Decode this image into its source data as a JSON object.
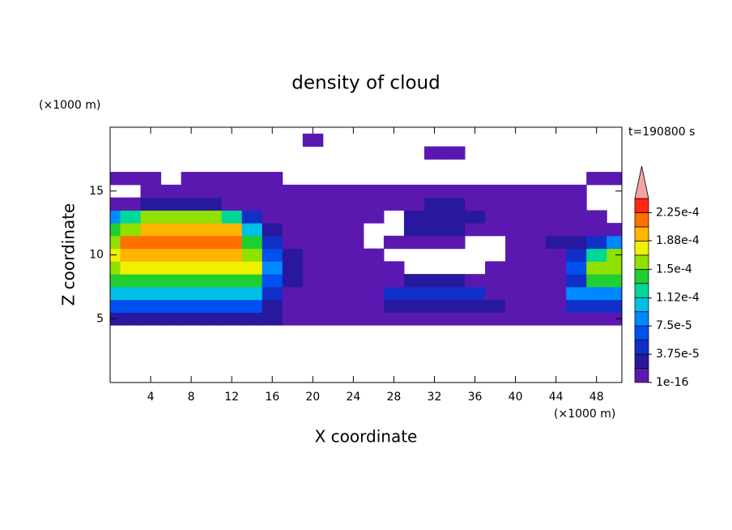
{
  "chart_data": {
    "type": "contour",
    "title": "density of cloud",
    "annotation": "t=190800 s",
    "xlabel": "X coordinate",
    "ylabel": "Z coordinate",
    "xunit": "(×1000 m)",
    "yunit": "(×1000 m)",
    "xlim": [
      0,
      50.5
    ],
    "ylim": [
      0,
      20
    ],
    "xticks": [
      4,
      8,
      12,
      16,
      20,
      24,
      28,
      32,
      36,
      40,
      44,
      48
    ],
    "yticks": [
      5,
      10,
      15
    ],
    "x": [
      0,
      2,
      4,
      6,
      8,
      10,
      12,
      14,
      16,
      18,
      20,
      22,
      24,
      26,
      28,
      30,
      32,
      34,
      36,
      38,
      40,
      42,
      44,
      46,
      48,
      50
    ],
    "y": [
      0,
      1,
      2,
      3,
      4,
      5,
      6,
      7,
      8,
      9,
      10,
      11,
      12,
      13,
      14,
      15,
      16,
      17,
      18,
      19,
      20
    ],
    "values": [
      [
        null,
        null,
        null,
        null,
        null,
        null,
        null,
        null,
        null,
        null,
        null,
        null,
        null,
        null,
        null,
        null,
        null,
        null,
        null,
        null,
        null,
        null,
        null,
        null,
        null,
        null
      ],
      [
        null,
        null,
        null,
        null,
        null,
        null,
        null,
        null,
        null,
        null,
        null,
        null,
        null,
        null,
        null,
        null,
        null,
        null,
        null,
        null,
        null,
        null,
        null,
        null,
        null,
        null
      ],
      [
        null,
        null,
        null,
        null,
        null,
        null,
        null,
        null,
        null,
        null,
        null,
        null,
        null,
        null,
        null,
        null,
        null,
        null,
        null,
        null,
        null,
        null,
        null,
        null,
        null,
        null
      ],
      [
        null,
        null,
        null,
        null,
        null,
        null,
        null,
        null,
        null,
        null,
        null,
        null,
        null,
        null,
        null,
        null,
        null,
        null,
        null,
        null,
        null,
        null,
        null,
        null,
        null,
        null
      ],
      [
        null,
        null,
        null,
        null,
        null,
        null,
        null,
        null,
        null,
        null,
        null,
        null,
        null,
        null,
        null,
        null,
        null,
        null,
        null,
        null,
        null,
        null,
        null,
        null,
        null,
        null
      ],
      [
        3e-05,
        3e-05,
        3e-05,
        3e-05,
        3e-05,
        3e-05,
        3e-05,
        3e-05,
        3e-05,
        5e-06,
        5e-06,
        5e-06,
        5e-06,
        5e-06,
        5e-06,
        5e-06,
        5e-06,
        5e-06,
        5e-06,
        5e-06,
        5e-06,
        5e-06,
        5e-06,
        5e-06,
        5e-06,
        5e-06
      ],
      [
        6e-05,
        6e-05,
        6e-05,
        6e-05,
        6e-05,
        6e-05,
        6e-05,
        6e-05,
        3e-05,
        5e-06,
        5e-06,
        5e-06,
        5e-06,
        5e-06,
        3e-05,
        3e-05,
        3e-05,
        3e-05,
        3e-05,
        3e-05,
        5e-06,
        5e-06,
        5e-06,
        4e-05,
        4e-05,
        4e-05
      ],
      [
        0.00011,
        0.00011,
        0.00011,
        0.00011,
        0.00011,
        0.00011,
        0.00011,
        0.00011,
        5e-05,
        5e-06,
        5e-06,
        5e-06,
        5e-06,
        5e-06,
        4e-05,
        4e-05,
        4e-05,
        4e-05,
        4e-05,
        5e-06,
        5e-06,
        5e-06,
        5e-06,
        8e-05,
        8e-05,
        8e-05
      ],
      [
        0.00014,
        0.00014,
        0.00014,
        0.00014,
        0.00014,
        0.00014,
        0.00014,
        0.00014,
        6e-05,
        3e-05,
        5e-06,
        5e-06,
        5e-06,
        5e-06,
        5e-06,
        2.5e-05,
        2.5e-05,
        2.5e-05,
        5e-06,
        5e-06,
        5e-06,
        5e-06,
        5e-06,
        5e-05,
        0.00014,
        0.00014
      ],
      [
        0.00016,
        0.00018,
        0.00018,
        0.00018,
        0.00018,
        0.00018,
        0.00018,
        0.00018,
        8e-05,
        3e-05,
        5e-06,
        5e-06,
        5e-06,
        5e-06,
        5e-06,
        null,
        null,
        null,
        null,
        5e-06,
        5e-06,
        5e-06,
        5e-06,
        6e-05,
        0.00016,
        0.00016
      ],
      [
        0.00017,
        0.0002,
        0.0002,
        0.0002,
        0.0002,
        0.0002,
        0.0002,
        0.00016,
        6e-05,
        2.5e-05,
        5e-06,
        5e-06,
        5e-06,
        5e-06,
        null,
        null,
        null,
        null,
        null,
        null,
        5e-06,
        5e-06,
        5e-06,
        4e-05,
        0.00012,
        0.00015
      ],
      [
        0.00016,
        0.00021,
        0.00021,
        0.00021,
        0.00021,
        0.00021,
        0.00021,
        0.00014,
        4e-05,
        5e-06,
        5e-06,
        5e-06,
        5e-06,
        null,
        5e-06,
        5e-06,
        5e-06,
        5e-06,
        null,
        null,
        5e-06,
        5e-06,
        3e-05,
        3e-05,
        4e-05,
        8e-05
      ],
      [
        0.00014,
        0.00016,
        0.00019,
        0.00019,
        0.00019,
        0.00019,
        0.00019,
        0.00011,
        3e-05,
        5e-06,
        5e-06,
        5e-06,
        5e-06,
        null,
        null,
        3e-05,
        3e-05,
        3e-05,
        5e-06,
        5e-06,
        5e-06,
        5e-06,
        5e-06,
        5e-06,
        5e-06,
        5e-06
      ],
      [
        8e-05,
        0.00012,
        0.00015,
        0.00015,
        0.00015,
        0.00015,
        0.00012,
        5e-05,
        5e-06,
        5e-06,
        5e-06,
        5e-06,
        5e-06,
        5e-06,
        null,
        3e-05,
        3e-05,
        3e-05,
        3e-05,
        5e-06,
        5e-06,
        5e-06,
        5e-06,
        5e-06,
        5e-06,
        null
      ],
      [
        5e-06,
        5e-06,
        3e-05,
        3e-05,
        3e-05,
        3e-05,
        5e-06,
        5e-06,
        5e-06,
        5e-06,
        5e-06,
        5e-06,
        5e-06,
        5e-06,
        5e-06,
        5e-06,
        3e-05,
        3e-05,
        5e-06,
        5e-06,
        5e-06,
        5e-06,
        5e-06,
        5e-06,
        null,
        null
      ],
      [
        null,
        null,
        5e-06,
        5e-06,
        5e-06,
        5e-06,
        5e-06,
        5e-06,
        5e-06,
        5e-06,
        5e-06,
        5e-06,
        5e-06,
        5e-06,
        5e-06,
        5e-06,
        5e-06,
        5e-06,
        5e-06,
        5e-06,
        5e-06,
        5e-06,
        5e-06,
        5e-06,
        null,
        null
      ],
      [
        5e-06,
        5e-06,
        5e-06,
        null,
        5e-06,
        5e-06,
        5e-06,
        5e-06,
        5e-06,
        null,
        null,
        null,
        null,
        null,
        null,
        null,
        null,
        null,
        null,
        null,
        null,
        null,
        null,
        null,
        5e-06,
        5e-06
      ],
      [
        null,
        null,
        null,
        null,
        null,
        null,
        null,
        null,
        null,
        null,
        null,
        null,
        null,
        null,
        null,
        null,
        null,
        null,
        null,
        null,
        null,
        null,
        null,
        null,
        null,
        null
      ],
      [
        null,
        null,
        null,
        null,
        null,
        null,
        null,
        null,
        null,
        null,
        null,
        null,
        null,
        null,
        null,
        null,
        5e-06,
        5e-06,
        null,
        null,
        null,
        null,
        null,
        null,
        null,
        null
      ],
      [
        null,
        null,
        null,
        null,
        null,
        null,
        null,
        null,
        null,
        null,
        5e-06,
        null,
        null,
        null,
        null,
        null,
        null,
        null,
        null,
        null,
        null,
        null,
        null,
        null,
        null,
        null
      ],
      [
        null,
        null,
        null,
        null,
        null,
        null,
        null,
        null,
        null,
        null,
        null,
        null,
        null,
        null,
        null,
        null,
        null,
        null,
        null,
        null,
        null,
        null,
        null,
        null,
        null,
        null
      ]
    ],
    "levels": [
      1e-16,
      1.875e-05,
      3.75e-05,
      5.625e-05,
      7.5e-05,
      9.375e-05,
      0.0001125,
      0.00013125,
      0.00015,
      0.00016875,
      0.0001875,
      0.00020625,
      0.000225,
      0.00024375
    ],
    "colors": [
      "#5a18b0",
      "#2818a0",
      "#1030c8",
      "#0050f0",
      "#0088ff",
      "#00c0e8",
      "#00d898",
      "#20d030",
      "#90e000",
      "#f0f000",
      "#ffb400",
      "#ff7000",
      "#ff2810"
    ],
    "extend_color": "#f4a4a4",
    "colorbar_ticks": [
      {
        "value": 1e-16,
        "label": "1e-16"
      },
      {
        "value": 3.75e-05,
        "label": "3.75e-5"
      },
      {
        "value": 7.5e-05,
        "label": "7.5e-5"
      },
      {
        "value": 0.000112,
        "label": "1.12e-4"
      },
      {
        "value": 0.00015,
        "label": "1.5e-4"
      },
      {
        "value": 0.000188,
        "label": "1.88e-4"
      },
      {
        "value": 0.000225,
        "label": "2.25e-4"
      }
    ]
  }
}
